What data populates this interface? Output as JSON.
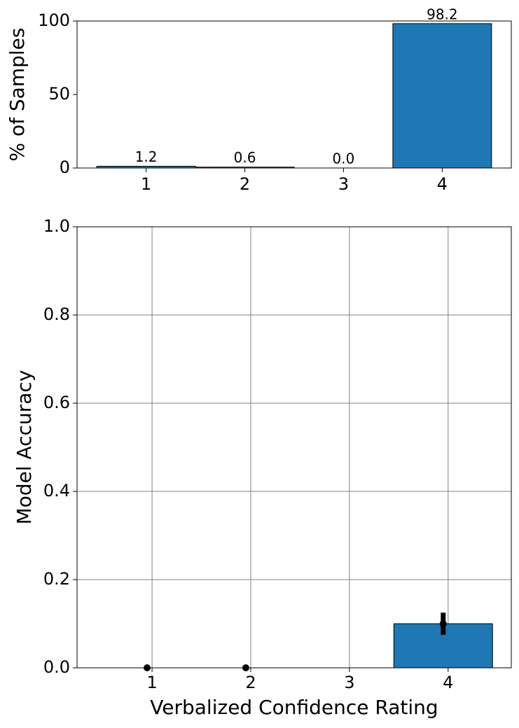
{
  "chart_data": [
    {
      "type": "bar",
      "ylabel": "% of Samples",
      "categories": [
        "1",
        "2",
        "3",
        "4"
      ],
      "values": [
        1.2,
        0.6,
        0.0,
        98.2
      ],
      "value_labels": [
        "1.2",
        "0.6",
        "0.0",
        "98.2"
      ],
      "color": "#1f77b4",
      "ylim": [
        0,
        100
      ],
      "yticks": [
        0,
        50,
        100
      ],
      "grid": false
    },
    {
      "type": "errorbar-bar",
      "xlabel": "Verbalized Confidence Rating",
      "ylabel": "Model Accuracy",
      "x": [
        0.95,
        1.95,
        2.95,
        3.95
      ],
      "values": [
        0,
        0,
        null,
        0.1
      ],
      "errors": [
        0,
        0,
        null,
        0.025
      ],
      "color": "#1f77b4",
      "xlim": [
        0.24,
        4.64
      ],
      "xticks": [
        1,
        2,
        3,
        4
      ],
      "ylim": [
        0,
        1
      ],
      "yticks": [
        {
          "value": 0,
          "label": "0.0"
        },
        {
          "value": 0.2,
          "label": "0.2"
        },
        {
          "value": 0.4,
          "label": "0.4"
        },
        {
          "value": 0.6,
          "label": "0.6"
        },
        {
          "value": 0.8,
          "label": "0.8"
        },
        {
          "value": 1,
          "label": "1.0"
        }
      ],
      "grid": true
    }
  ]
}
